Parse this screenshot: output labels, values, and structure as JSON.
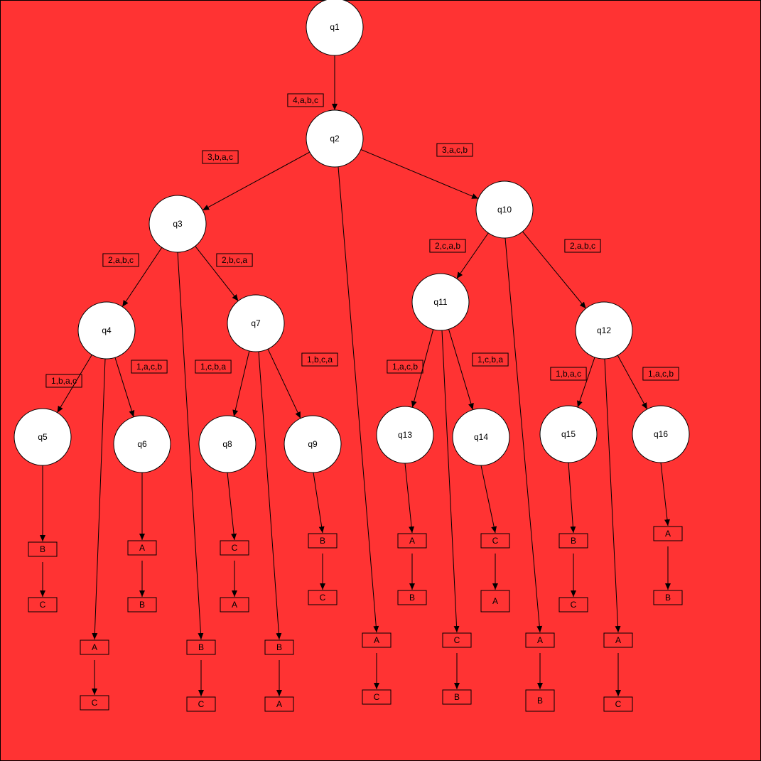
{
  "colors": {
    "background": "#ff3333",
    "node_fill": "#ffffff",
    "stroke": "#000000"
  },
  "nodes": [
    {
      "id": "q1",
      "label": "q1"
    },
    {
      "id": "q2",
      "label": "q2"
    },
    {
      "id": "q3",
      "label": "q3"
    },
    {
      "id": "q4",
      "label": "q4"
    },
    {
      "id": "q5",
      "label": "q5"
    },
    {
      "id": "q6",
      "label": "q6"
    },
    {
      "id": "q7",
      "label": "q7"
    },
    {
      "id": "q8",
      "label": "q8"
    },
    {
      "id": "q9",
      "label": "q9"
    },
    {
      "id": "q10",
      "label": "q10"
    },
    {
      "id": "q11",
      "label": "q11"
    },
    {
      "id": "q12",
      "label": "q12"
    },
    {
      "id": "q13",
      "label": "q13"
    },
    {
      "id": "q14",
      "label": "q14"
    },
    {
      "id": "q15",
      "label": "q15"
    },
    {
      "id": "q16",
      "label": "q16"
    }
  ],
  "edge_labels": [
    {
      "id": "e-q1-q2",
      "text": "4,a,b,c"
    },
    {
      "id": "e-q2-q3",
      "text": "3,b,a,c"
    },
    {
      "id": "e-q2-q10",
      "text": "3,a,c,b"
    },
    {
      "id": "e-q3-q4",
      "text": "2,a,b,c"
    },
    {
      "id": "e-q3-q7",
      "text": "2,b,c,a"
    },
    {
      "id": "e-q10-q11",
      "text": "2,c,a,b"
    },
    {
      "id": "e-q10-q12",
      "text": "2,a,b,c"
    },
    {
      "id": "e-q4-q5",
      "text": "1,b,a,c"
    },
    {
      "id": "e-q4-q6",
      "text": "1,a,c,b"
    },
    {
      "id": "e-q7-q8",
      "text": "1,c,b,a"
    },
    {
      "id": "e-q7-q9",
      "text": "1,b,c,a"
    },
    {
      "id": "e-q11-q13",
      "text": "1,a,c,b"
    },
    {
      "id": "e-q11-q14",
      "text": "1,c,b,a"
    },
    {
      "id": "e-q12-q15",
      "text": "1,b,a,c"
    },
    {
      "id": "e-q12-q16",
      "text": "1,a,c,b"
    }
  ],
  "boxes": [
    {
      "id": "b-q5-1",
      "text": "B"
    },
    {
      "id": "b-q5-2",
      "text": "C"
    },
    {
      "id": "b-q4-1",
      "text": "A"
    },
    {
      "id": "b-q4-2",
      "text": "C"
    },
    {
      "id": "b-q6-1",
      "text": "A"
    },
    {
      "id": "b-q6-2",
      "text": "B"
    },
    {
      "id": "b-q3-1",
      "text": "B"
    },
    {
      "id": "b-q3-2",
      "text": "C"
    },
    {
      "id": "b-q8-1",
      "text": "C"
    },
    {
      "id": "b-q8-2",
      "text": "A"
    },
    {
      "id": "b-q7-1",
      "text": "B"
    },
    {
      "id": "b-q7-2",
      "text": "A"
    },
    {
      "id": "b-q9-1",
      "text": "B"
    },
    {
      "id": "b-q9-2",
      "text": "C"
    },
    {
      "id": "b-q2-1",
      "text": "A"
    },
    {
      "id": "b-q2-2",
      "text": "C"
    },
    {
      "id": "b-q13-1",
      "text": "A"
    },
    {
      "id": "b-q13-2",
      "text": "B"
    },
    {
      "id": "b-q11-1",
      "text": "C"
    },
    {
      "id": "b-q11-2",
      "text": "B"
    },
    {
      "id": "b-q14-1",
      "text": "C"
    },
    {
      "id": "b-q14-2",
      "text": "A"
    },
    {
      "id": "b-q10-1",
      "text": "A"
    },
    {
      "id": "b-q10-2",
      "text": "B"
    },
    {
      "id": "b-q15-1",
      "text": "B"
    },
    {
      "id": "b-q15-2",
      "text": "C"
    },
    {
      "id": "b-q12-1",
      "text": "A"
    },
    {
      "id": "b-q12-2",
      "text": "C"
    },
    {
      "id": "b-q16-1",
      "text": "A"
    },
    {
      "id": "b-q16-2",
      "text": "B"
    }
  ]
}
